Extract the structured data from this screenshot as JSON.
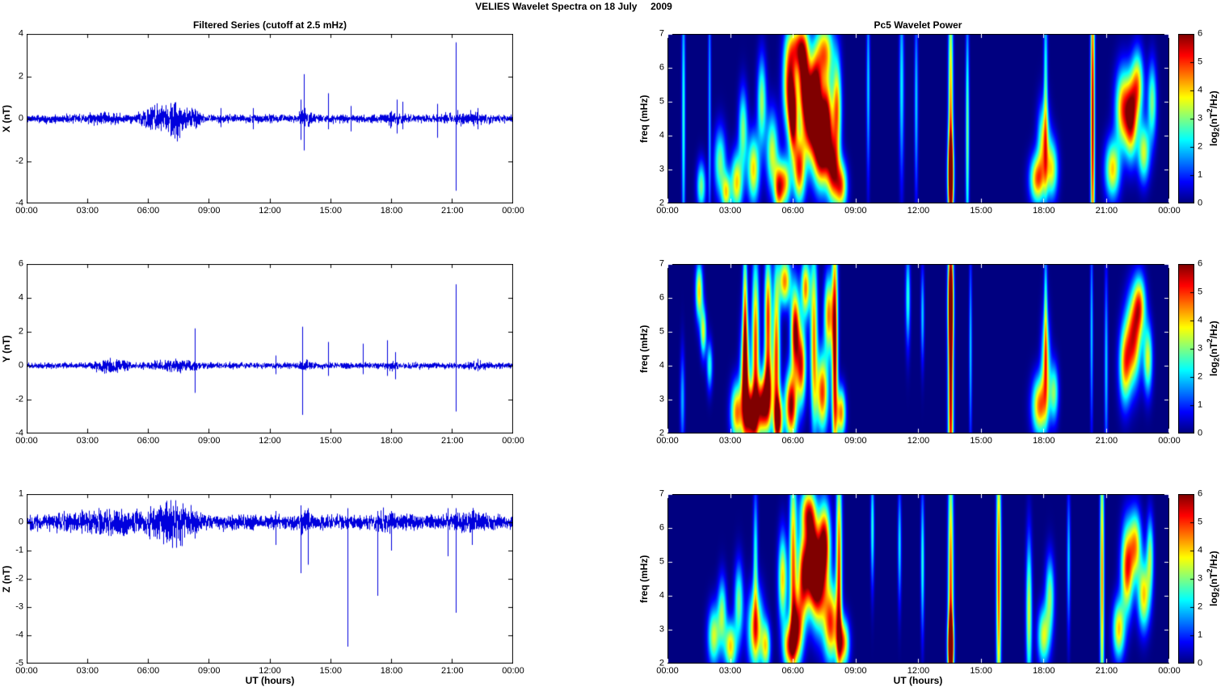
{
  "figure": {
    "title": "VELIES Wavelet Spectra on 18 July     2009"
  },
  "time_axis": {
    "label": "UT (hours)",
    "ticks": [
      "00:00",
      "03:00",
      "06:00",
      "09:00",
      "12:00",
      "15:00",
      "18:00",
      "21:00",
      "00:00"
    ],
    "range_hours": [
      0,
      24
    ]
  },
  "colorbar": {
    "ticks": [
      0,
      1,
      2,
      3,
      4,
      5,
      6
    ],
    "lim": [
      0,
      6
    ],
    "label": {
      "pre": "log",
      "sub": "2",
      "mid": "(nT",
      "sup": "2",
      "post": "/Hz)"
    }
  },
  "line_color": "#0000dd",
  "formats": {
    "envelope_segment": [
      "t_start_hours",
      "t_end_hours",
      "noise_amplitude_nT"
    ],
    "spike": [
      "t_hours",
      "peak_up_nT",
      "peak_down_nT"
    ],
    "blob": [
      "t_hours",
      "freq_mHz",
      "sigma_t_hours",
      "sigma_f_mHz",
      "peak_log2_power"
    ]
  },
  "chart_data": [
    {
      "type": "line",
      "series": "X",
      "title": "Filtered Series (cutoff at 2.5 mHz)",
      "ylabel": "X (nT)",
      "ylim": [
        -4,
        4
      ],
      "yticks": [
        -4,
        -2,
        0,
        2,
        4
      ],
      "noise_base": 0.22,
      "seed": 11,
      "envelope_segments": [
        [
          2.5,
          5.2,
          0.35
        ],
        [
          5.2,
          9.0,
          0.75
        ],
        [
          6.8,
          7.8,
          1.1
        ],
        [
          13.3,
          14.2,
          0.5
        ],
        [
          17.5,
          18.8,
          0.45
        ],
        [
          20.0,
          23.3,
          0.4
        ]
      ],
      "spikes": [
        [
          9.6,
          0.5,
          -0.4
        ],
        [
          11.2,
          0.5,
          -0.5
        ],
        [
          13.55,
          0.9,
          -1.0
        ],
        [
          13.7,
          2.1,
          -1.5
        ],
        [
          14.9,
          1.2,
          -0.5
        ],
        [
          16.0,
          0.6,
          -0.6
        ],
        [
          18.3,
          0.9,
          -0.7
        ],
        [
          18.55,
          0.8,
          -0.5
        ],
        [
          20.3,
          0.7,
          -0.9
        ],
        [
          21.2,
          3.6,
          -3.4
        ],
        [
          22.3,
          0.5,
          -0.5
        ]
      ]
    },
    {
      "type": "line",
      "series": "Y",
      "ylabel": "Y (nT)",
      "ylim": [
        -4,
        6
      ],
      "yticks": [
        -4,
        -2,
        0,
        2,
        4,
        6
      ],
      "noise_base": 0.2,
      "seed": 23,
      "envelope_segments": [
        [
          2.8,
          5.5,
          0.45
        ],
        [
          3.5,
          4.5,
          0.6
        ],
        [
          5.5,
          9.0,
          0.4
        ],
        [
          13.3,
          14.2,
          0.4
        ],
        [
          17.5,
          18.6,
          0.35
        ],
        [
          21.5,
          23.2,
          0.35
        ]
      ],
      "spikes": [
        [
          8.3,
          2.2,
          -1.6
        ],
        [
          12.3,
          0.6,
          -0.5
        ],
        [
          13.6,
          2.3,
          -2.9
        ],
        [
          14.9,
          1.4,
          -0.6
        ],
        [
          16.6,
          1.3,
          -0.5
        ],
        [
          17.8,
          1.5,
          -0.6
        ],
        [
          18.2,
          0.8,
          -0.8
        ],
        [
          21.2,
          4.8,
          -2.7
        ]
      ]
    },
    {
      "type": "line",
      "series": "Z",
      "ylabel": "Z (nT)",
      "ylim": [
        -5,
        1
      ],
      "yticks": [
        -5,
        -4,
        -3,
        -2,
        -1,
        0,
        1
      ],
      "noise_base": 0.3,
      "seed": 37,
      "envelope_segments": [
        [
          0.0,
          9.2,
          0.55
        ],
        [
          5.5,
          8.8,
          0.85
        ],
        [
          6.5,
          7.6,
          1.0
        ],
        [
          13.3,
          14.3,
          0.5
        ],
        [
          17.0,
          18.5,
          0.45
        ],
        [
          20.5,
          23.2,
          0.5
        ]
      ],
      "spikes": [
        [
          12.3,
          0.4,
          -0.8
        ],
        [
          13.55,
          0.6,
          -1.8
        ],
        [
          13.9,
          0.5,
          -1.5
        ],
        [
          15.85,
          0.5,
          -4.4
        ],
        [
          17.35,
          0.4,
          -2.6
        ],
        [
          18.0,
          0.4,
          -1.0
        ],
        [
          20.8,
          0.5,
          -1.2
        ],
        [
          21.2,
          0.5,
          -3.2
        ],
        [
          22.0,
          0.4,
          -0.8
        ]
      ]
    },
    {
      "type": "heatmap",
      "series": "X",
      "title": "Pc5 Wavelet Power",
      "ylabel": "freq (mHz)",
      "ylim": [
        2,
        7
      ],
      "yticks": [
        2,
        3,
        4,
        5,
        6,
        7
      ],
      "clim": [
        0,
        6
      ],
      "blobs": [
        [
          0.75,
          4.5,
          0.06,
          3,
          2.5
        ],
        [
          1.6,
          2.5,
          0.15,
          0.5,
          3
        ],
        [
          2.0,
          5.0,
          0.05,
          3,
          1.8
        ],
        [
          2.5,
          3.2,
          0.2,
          0.7,
          3
        ],
        [
          2.8,
          2.3,
          0.15,
          0.4,
          3.5
        ],
        [
          3.3,
          2.6,
          0.2,
          0.6,
          4
        ],
        [
          3.6,
          4.2,
          0.15,
          0.8,
          3
        ],
        [
          4.1,
          3.0,
          0.2,
          0.7,
          4
        ],
        [
          4.5,
          5.0,
          0.15,
          0.9,
          3.2
        ],
        [
          5.0,
          3.5,
          0.2,
          0.8,
          3.5
        ],
        [
          5.3,
          2.4,
          0.15,
          0.5,
          4
        ],
        [
          5.6,
          2.6,
          0.2,
          0.5,
          4
        ],
        [
          5.8,
          5.5,
          0.2,
          0.9,
          5
        ],
        [
          6.0,
          4.5,
          0.15,
          0.8,
          5.5
        ],
        [
          6.2,
          6.6,
          0.3,
          0.5,
          4
        ],
        [
          6.3,
          3.0,
          0.2,
          0.7,
          5
        ],
        [
          6.5,
          5.8,
          0.2,
          0.9,
          5.2
        ],
        [
          6.8,
          4.6,
          0.25,
          0.9,
          6
        ],
        [
          7.1,
          5.2,
          0.2,
          0.8,
          5.5
        ],
        [
          7.3,
          3.6,
          0.25,
          0.8,
          6
        ],
        [
          7.5,
          6.5,
          0.3,
          0.6,
          4.2
        ],
        [
          7.6,
          4.4,
          0.2,
          0.9,
          5.8
        ],
        [
          7.9,
          3.0,
          0.2,
          0.7,
          5
        ],
        [
          8.1,
          4.8,
          0.15,
          1.0,
          4.5
        ],
        [
          8.3,
          2.5,
          0.2,
          0.5,
          4.5
        ],
        [
          9.6,
          5.5,
          0.06,
          2,
          2
        ],
        [
          11.2,
          5.5,
          0.08,
          2,
          2.2
        ],
        [
          11.9,
          5.0,
          0.06,
          2,
          2
        ],
        [
          13.55,
          4.5,
          0.08,
          3,
          4.5
        ],
        [
          13.55,
          2.8,
          0.1,
          0.8,
          5.5
        ],
        [
          14.35,
          4.0,
          0.06,
          2.5,
          3
        ],
        [
          17.7,
          2.7,
          0.25,
          0.5,
          4.5
        ],
        [
          18.0,
          3.8,
          0.2,
          0.8,
          3.5
        ],
        [
          18.1,
          5.5,
          0.07,
          2,
          2.5
        ],
        [
          18.4,
          3.0,
          0.2,
          0.6,
          3.5
        ],
        [
          20.35,
          4.5,
          0.07,
          3.5,
          5.8
        ],
        [
          21.3,
          3.0,
          0.25,
          0.6,
          4
        ],
        [
          21.8,
          4.8,
          0.25,
          0.8,
          4.5
        ],
        [
          22.2,
          4.5,
          0.2,
          0.8,
          5
        ],
        [
          22.5,
          5.5,
          0.2,
          0.7,
          4
        ],
        [
          22.8,
          3.5,
          0.2,
          0.6,
          3.5
        ],
        [
          23.2,
          5.0,
          0.15,
          0.8,
          3
        ]
      ]
    },
    {
      "type": "heatmap",
      "series": "Y",
      "ylabel": "freq (mHz)",
      "ylim": [
        2,
        7
      ],
      "yticks": [
        2,
        3,
        4,
        5,
        6,
        7
      ],
      "clim": [
        0,
        6
      ],
      "blobs": [
        [
          0.7,
          3.0,
          0.08,
          1,
          1.8
        ],
        [
          1.5,
          6.2,
          0.12,
          0.6,
          4
        ],
        [
          1.7,
          5.0,
          0.1,
          0.5,
          3.5
        ],
        [
          2.0,
          4.0,
          0.1,
          0.5,
          2.5
        ],
        [
          3.3,
          2.6,
          0.2,
          0.6,
          4.5
        ],
        [
          3.7,
          3.5,
          0.15,
          1.2,
          5.5
        ],
        [
          3.7,
          5.5,
          0.08,
          1.5,
          4
        ],
        [
          4.0,
          2.5,
          0.2,
          0.6,
          6
        ],
        [
          4.2,
          4.5,
          0.12,
          1.8,
          5
        ],
        [
          4.5,
          2.8,
          0.18,
          0.6,
          5.5
        ],
        [
          4.8,
          5.5,
          0.12,
          1.2,
          5
        ],
        [
          4.8,
          3.2,
          0.15,
          0.8,
          5.5
        ],
        [
          5.2,
          4.2,
          0.12,
          1.8,
          5
        ],
        [
          5.3,
          2.4,
          0.15,
          0.5,
          5
        ],
        [
          5.6,
          6.5,
          0.2,
          0.5,
          4.5
        ],
        [
          5.9,
          2.8,
          0.2,
          0.7,
          6
        ],
        [
          6.1,
          5.0,
          0.15,
          0.9,
          6
        ],
        [
          6.4,
          4.0,
          0.15,
          0.8,
          5
        ],
        [
          6.6,
          6.3,
          0.15,
          0.6,
          4.5
        ],
        [
          7.0,
          4.8,
          0.12,
          1.8,
          4.5
        ],
        [
          7.4,
          3.2,
          0.2,
          0.8,
          5
        ],
        [
          7.7,
          5.5,
          0.15,
          0.8,
          4.5
        ],
        [
          8.0,
          4.5,
          0.1,
          2.5,
          6
        ],
        [
          8.3,
          2.6,
          0.15,
          0.5,
          4.5
        ],
        [
          11.5,
          6.0,
          0.08,
          1,
          2.5
        ],
        [
          12.2,
          5.5,
          0.06,
          1,
          2
        ],
        [
          13.55,
          3.5,
          0.09,
          3,
          6
        ],
        [
          13.55,
          6.0,
          0.09,
          1,
          4.5
        ],
        [
          14.5,
          4.5,
          0.05,
          2,
          2
        ],
        [
          17.8,
          2.8,
          0.25,
          0.6,
          4.5
        ],
        [
          18.1,
          4.0,
          0.15,
          1.0,
          3.5
        ],
        [
          18.1,
          5.5,
          0.06,
          1.5,
          2.5
        ],
        [
          18.5,
          3.2,
          0.15,
          0.6,
          3
        ],
        [
          20.3,
          5.0,
          0.05,
          2,
          2
        ],
        [
          21.0,
          4.0,
          0.06,
          2,
          2
        ],
        [
          21.9,
          4.0,
          0.2,
          0.8,
          4
        ],
        [
          22.3,
          4.8,
          0.25,
          0.9,
          5
        ],
        [
          22.6,
          5.8,
          0.2,
          0.6,
          4
        ],
        [
          23.0,
          4.2,
          0.15,
          0.7,
          3.5
        ]
      ]
    },
    {
      "type": "heatmap",
      "series": "Z",
      "ylabel": "freq (mHz)",
      "ylim": [
        2,
        7
      ],
      "yticks": [
        2,
        3,
        4,
        5,
        6,
        7
      ],
      "clim": [
        0,
        6
      ],
      "blobs": [
        [
          2.2,
          2.8,
          0.2,
          0.6,
          3.5
        ],
        [
          2.6,
          3.5,
          0.15,
          0.7,
          3
        ],
        [
          3.0,
          2.5,
          0.2,
          0.5,
          4
        ],
        [
          3.4,
          3.8,
          0.15,
          0.8,
          3
        ],
        [
          4.2,
          3.0,
          0.25,
          0.8,
          4.5
        ],
        [
          4.2,
          5.0,
          0.08,
          1.5,
          2.5
        ],
        [
          4.7,
          2.5,
          0.15,
          0.5,
          3.5
        ],
        [
          5.5,
          4.5,
          0.15,
          0.9,
          4
        ],
        [
          5.8,
          2.5,
          0.2,
          0.5,
          4.5
        ],
        [
          6.0,
          5.0,
          0.12,
          2,
          4.5
        ],
        [
          6.2,
          3.0,
          0.2,
          0.7,
          5
        ],
        [
          6.5,
          4.6,
          0.2,
          0.9,
          5.5
        ],
        [
          6.7,
          6.5,
          0.25,
          0.5,
          4
        ],
        [
          6.9,
          5.2,
          0.2,
          0.9,
          6
        ],
        [
          7.2,
          4.4,
          0.25,
          0.9,
          6
        ],
        [
          7.5,
          5.6,
          0.2,
          0.8,
          5.5
        ],
        [
          7.8,
          3.2,
          0.25,
          0.8,
          5
        ],
        [
          8.2,
          4.8,
          0.1,
          2.2,
          5
        ],
        [
          8.4,
          2.6,
          0.2,
          0.5,
          4.5
        ],
        [
          9.8,
          6.0,
          0.06,
          1.2,
          2.5
        ],
        [
          11.1,
          5.5,
          0.06,
          1.2,
          2.2
        ],
        [
          12.2,
          5.0,
          0.06,
          1.5,
          2.5
        ],
        [
          13.55,
          4.0,
          0.09,
          3,
          5
        ],
        [
          13.55,
          2.5,
          0.1,
          0.6,
          5.5
        ],
        [
          15.85,
          4.5,
          0.08,
          3,
          5
        ],
        [
          17.3,
          3.5,
          0.1,
          1.5,
          3.5
        ],
        [
          18.0,
          2.8,
          0.2,
          0.6,
          3.5
        ],
        [
          18.3,
          4.0,
          0.15,
          0.8,
          3
        ],
        [
          19.2,
          5.0,
          0.06,
          1.5,
          2
        ],
        [
          20.8,
          4.5,
          0.07,
          3,
          4.5
        ],
        [
          21.6,
          3.0,
          0.2,
          0.6,
          4
        ],
        [
          22.0,
          4.8,
          0.2,
          0.9,
          5
        ],
        [
          22.4,
          5.5,
          0.2,
          0.7,
          4
        ],
        [
          22.8,
          4.0,
          0.2,
          0.7,
          4
        ],
        [
          23.1,
          5.2,
          0.12,
          0.8,
          3
        ]
      ]
    }
  ]
}
